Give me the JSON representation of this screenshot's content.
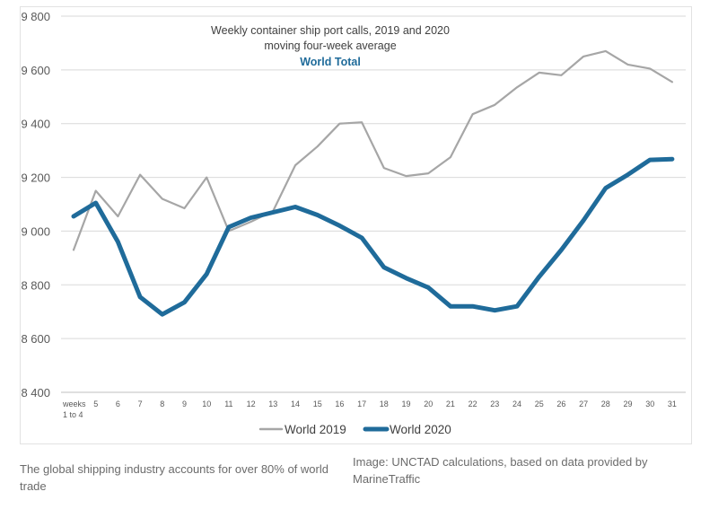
{
  "chart_data": {
    "type": "line",
    "title": "Weekly container ship port calls, 2019 and 2020",
    "subtitle": "moving four-week average",
    "subtitle2": "World Total",
    "categories": [
      "weeks 1 to 4",
      "5",
      "6",
      "7",
      "8",
      "9",
      "10",
      "11",
      "12",
      "13",
      "14",
      "15",
      "16",
      "17",
      "18",
      "19",
      "20",
      "21",
      "22",
      "23",
      "24",
      "25",
      "26",
      "27",
      "28",
      "29",
      "30",
      "31"
    ],
    "tick_labels_x": [
      "weeks",
      "1 to 4",
      "5",
      "6",
      "7",
      "8",
      "9",
      "10",
      "11",
      "12",
      "13",
      "14",
      "15",
      "16",
      "17",
      "18",
      "19",
      "20",
      "21",
      "22",
      "23",
      "24",
      "25",
      "26",
      "27",
      "28",
      "29",
      "30",
      "31"
    ],
    "ylim": [
      8400,
      9800
    ],
    "yticks": [
      8400,
      8600,
      8800,
      9000,
      9200,
      9400,
      9600,
      9800
    ],
    "ytick_labels": [
      "8 400",
      "8 600",
      "8 800",
      "9 000",
      "9 200",
      "9 400",
      "9 600",
      "9 800"
    ],
    "grid": "horizontal",
    "legend_position": "bottom",
    "series": [
      {
        "name": "World 2019",
        "color": "#a6a6a6",
        "values": [
          8930,
          9150,
          9055,
          9210,
          9120,
          9085,
          9200,
          9000,
          9035,
          9075,
          9245,
          9315,
          9400,
          9405,
          9235,
          9205,
          9215,
          9275,
          9435,
          9470,
          9535,
          9590,
          9580,
          9650,
          9670,
          9620,
          9605,
          9555
        ]
      },
      {
        "name": "World 2020",
        "color": "#1f6b9a",
        "values": [
          9055,
          9105,
          8960,
          8755,
          8690,
          8735,
          8840,
          9015,
          9050,
          9070,
          9090,
          9060,
          9020,
          8975,
          8865,
          8825,
          8790,
          8720,
          8720,
          8705,
          8720,
          8830,
          8930,
          9040,
          9160,
          9210,
          9265,
          9268
        ]
      }
    ]
  },
  "captions": {
    "left": "The global shipping industry accounts for over 80% of world trade",
    "right": "Image: UNCTAD calculations, based on data provided by MarineTraffic"
  }
}
